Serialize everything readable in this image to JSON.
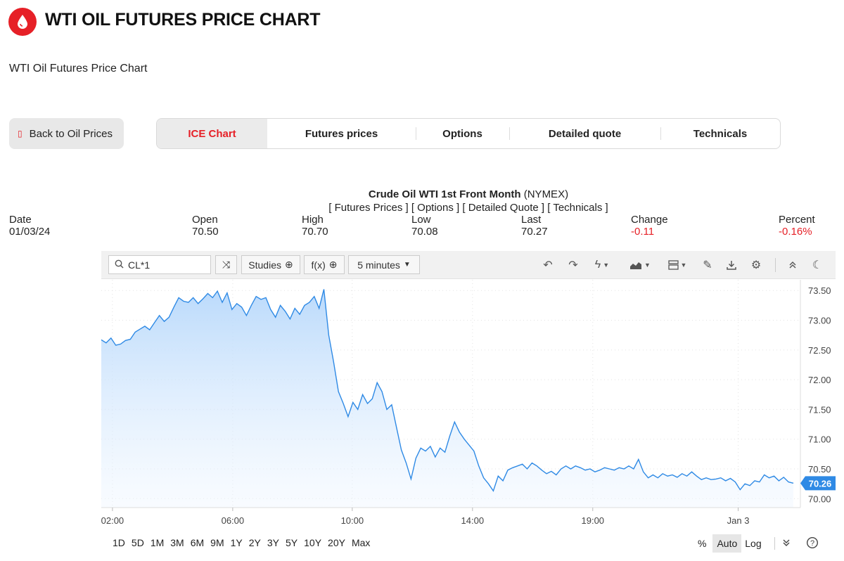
{
  "header": {
    "title": "WTI OIL FUTURES PRICE CHART",
    "subtitle": "WTI Oil Futures Price Chart",
    "logo_icon": "oil-drop-icon",
    "brand_color": "#e62027"
  },
  "back_button": {
    "label": "Back to Oil Prices",
    "icon": "back-glyph-icon"
  },
  "tabs": [
    {
      "label": "ICE Chart",
      "active": true
    },
    {
      "label": "Futures prices"
    },
    {
      "label": "Options"
    },
    {
      "label": "Detailed quote"
    },
    {
      "label": "Technicals"
    }
  ],
  "contract": {
    "name": "Crude Oil WTI 1st Front Month",
    "exchange": "(NYMEX)",
    "links": "[ Futures Prices ] [ Options ] [ Detailed Quote ] [ Technicals ]"
  },
  "quote": {
    "date_label": "Date",
    "date": "01/03/24",
    "open_label": "Open",
    "open": "70.50",
    "high_label": "High",
    "high": "70.70",
    "low_label": "Low",
    "low": "70.08",
    "last_label": "Last",
    "last": "70.27",
    "change_label": "Change",
    "change": "-0.11",
    "percent_label": "Percent",
    "percent": "-0.16%"
  },
  "toolbar": {
    "symbol": "CL*1",
    "studies_label": "Studies",
    "fx_label": "f(x)",
    "interval_label": "5 minutes"
  },
  "range_buttons": [
    "1D",
    "5D",
    "1M",
    "3M",
    "6M",
    "9M",
    "1Y",
    "2Y",
    "3Y",
    "5Y",
    "10Y",
    "20Y",
    "Max"
  ],
  "scale_controls": {
    "percent": "%",
    "auto": "Auto",
    "log": "Log"
  },
  "chart_data": {
    "type": "area",
    "series": [
      {
        "values": [
          72.67,
          72.62,
          72.7,
          72.58,
          72.6,
          72.66,
          72.68,
          72.8,
          72.85,
          72.9,
          72.84,
          72.96,
          73.08,
          72.98,
          73.05,
          73.22,
          73.38,
          73.32,
          73.3,
          73.38,
          73.28,
          73.36,
          73.45,
          73.38,
          73.49,
          73.3,
          73.46,
          73.18,
          73.28,
          73.22,
          73.08,
          73.25,
          73.4,
          73.35,
          73.38,
          73.18,
          73.05,
          73.25,
          73.15,
          73.02,
          73.2,
          73.1,
          73.25,
          73.3,
          73.4,
          73.2,
          73.52,
          72.75,
          72.3,
          71.8,
          71.6,
          71.38,
          71.62,
          71.5,
          71.75,
          71.6,
          71.68,
          71.95,
          71.8,
          71.5,
          71.58,
          71.2,
          70.82,
          70.6,
          70.33,
          70.68,
          70.85,
          70.8,
          70.88,
          70.7,
          70.85,
          70.78,
          71.05,
          71.29,
          71.12,
          71.0,
          70.9,
          70.8,
          70.55,
          70.35,
          70.25,
          70.13,
          70.38,
          70.3,
          70.48,
          70.52,
          70.55,
          70.58,
          70.5,
          70.6,
          70.55,
          70.48,
          70.42,
          70.46,
          70.4,
          70.5,
          70.55,
          70.5,
          70.55,
          70.52,
          70.48,
          70.5,
          70.45,
          70.48,
          70.52,
          70.5,
          70.48,
          70.52,
          70.5,
          70.55,
          70.5,
          70.66,
          70.45,
          70.35,
          70.4,
          70.35,
          70.42,
          70.38,
          70.4,
          70.36,
          70.42,
          70.38,
          70.45,
          70.38,
          70.32,
          70.35,
          70.32,
          70.33,
          70.35,
          70.3,
          70.34,
          70.28,
          70.15,
          70.25,
          70.22,
          70.3,
          70.28,
          70.4,
          70.35,
          70.38,
          70.3,
          70.36,
          70.28,
          70.26
        ]
      }
    ],
    "x_ticks": [
      "02:00",
      "06:00",
      "10:00",
      "14:00",
      "19:00",
      "Jan 3"
    ],
    "y_ticks": [
      "70.00",
      "70.50",
      "71.00",
      "71.50",
      "72.00",
      "72.50",
      "73.00",
      "73.50"
    ],
    "ylim": [
      69.85,
      73.68
    ],
    "last_value_label": "70.26",
    "line_color": "#2f8ae5",
    "grid": true
  }
}
